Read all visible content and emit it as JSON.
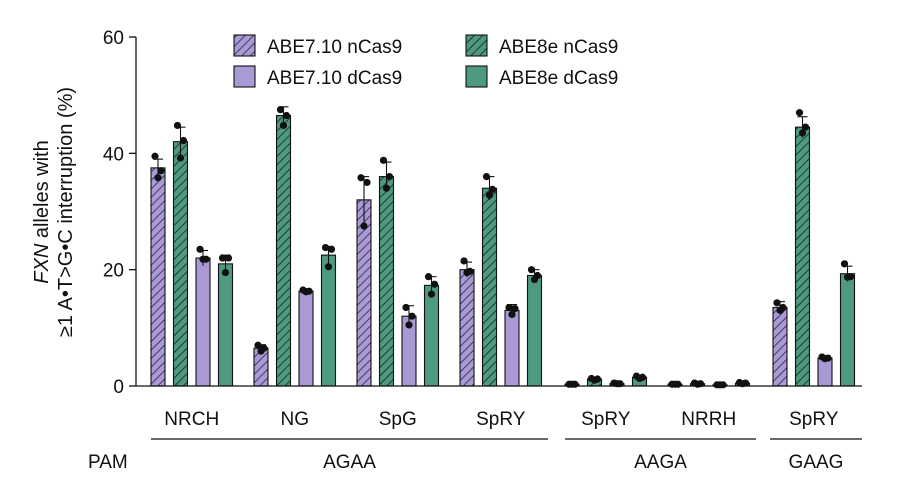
{
  "chart_data": {
    "type": "bar",
    "ylabel_line1_italic": "FXN",
    "ylabel_line1_rest": " alleles with",
    "ylabel_line2": "≥1 A•T>G•C interruption (%)",
    "ylim": [
      0,
      60
    ],
    "yticks": [
      "0",
      "20",
      "40",
      "60"
    ],
    "pam_label": "PAM",
    "legend_placement": "top-center",
    "series": [
      {
        "name": "ABE7.10 nCas9",
        "color": "#a99ad6",
        "hatched": true
      },
      {
        "name": "ABE8e nCas9",
        "color": "#4e9a80",
        "hatched": true
      },
      {
        "name": "ABE7.10 dCas9",
        "color": "#a99ad6",
        "hatched": false
      },
      {
        "name": "ABE8e dCas9",
        "color": "#4e9a80",
        "hatched": false
      }
    ],
    "categories": [
      "NRCH",
      "NG",
      "SpG",
      "SpRY",
      "SpRY",
      "NRRH",
      "SpRY"
    ],
    "pam_groups": [
      {
        "label": "AGAA",
        "categories": [
          0,
          1,
          2,
          3
        ]
      },
      {
        "label": "AAGA",
        "categories": [
          4,
          5
        ]
      },
      {
        "label": "GAAG",
        "categories": [
          6
        ]
      }
    ],
    "values": [
      [
        37.5,
        42.0,
        22.0,
        21.0
      ],
      [
        6.5,
        46.5,
        16.3,
        22.5
      ],
      [
        32.0,
        36.0,
        12.0,
        17.3
      ],
      [
        20.0,
        34.0,
        13.0,
        19.0
      ],
      [
        0.3,
        1.2,
        0.4,
        1.5
      ],
      [
        0.3,
        0.4,
        0.2,
        0.5
      ],
      [
        13.5,
        44.5,
        4.8,
        19.3
      ]
    ],
    "errors": [
      [
        1.5,
        2.5,
        1.3,
        1.5
      ],
      [
        0.6,
        1.5,
        0.4,
        1.5
      ],
      [
        4.0,
        2.5,
        1.8,
        1.5
      ],
      [
        1.3,
        2.0,
        1.0,
        1.0
      ],
      [
        0.2,
        0.3,
        0.2,
        0.3
      ],
      [
        0.2,
        0.2,
        0.1,
        0.2
      ],
      [
        1.0,
        1.8,
        0.3,
        1.3
      ]
    ],
    "replicates": [
      [
        [
          39.5,
          37.0,
          35.8
        ],
        [
          44.8,
          42.2,
          39.2
        ],
        [
          23.5,
          21.8,
          21.8
        ],
        [
          22.0,
          22.0,
          19.5
        ]
      ],
      [
        [
          7.0,
          6.5,
          6.0
        ],
        [
          47.5,
          46.5,
          44.8
        ],
        [
          16.5,
          16.3,
          16.2
        ],
        [
          23.8,
          23.5,
          20.5
        ]
      ],
      [
        [
          35.8,
          35.0,
          27.5
        ],
        [
          38.8,
          36.0,
          34.0
        ],
        [
          13.5,
          12.0,
          10.5
        ],
        [
          18.8,
          17.5,
          15.8
        ]
      ],
      [
        [
          21.5,
          19.7,
          19.5
        ],
        [
          36.0,
          33.8,
          32.8
        ],
        [
          13.5,
          13.3,
          12.3
        ],
        [
          20.0,
          19.0,
          18.3
        ]
      ],
      [
        [
          0.3,
          0.3,
          0.3
        ],
        [
          1.3,
          1.2,
          1.0
        ],
        [
          0.5,
          0.4,
          0.4
        ],
        [
          1.7,
          1.5,
          1.3
        ]
      ],
      [
        [
          0.3,
          0.3,
          0.3
        ],
        [
          0.5,
          0.4,
          0.3
        ],
        [
          0.2,
          0.2,
          0.2
        ],
        [
          0.6,
          0.5,
          0.4
        ]
      ],
      [
        [
          14.3,
          13.5,
          13.0
        ],
        [
          47.0,
          44.5,
          43.5
        ],
        [
          5.0,
          4.8,
          4.7
        ],
        [
          21.0,
          18.8,
          18.7
        ]
      ]
    ]
  }
}
